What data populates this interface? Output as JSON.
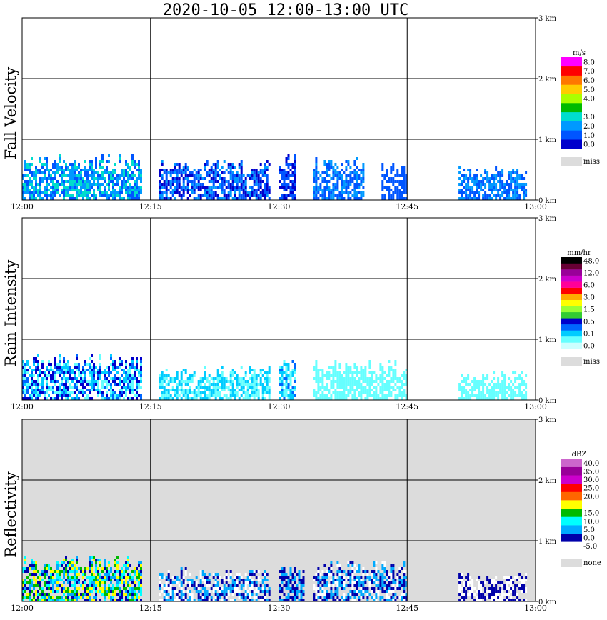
{
  "title": "2020-10-05   12:00-13:00 UTC",
  "colors": {
    "background": "#ffffff",
    "missing": "#dcdcdc",
    "grid": "#000000"
  },
  "chart_data": [
    {
      "type": "heatmap",
      "panel_label": "Fall Velocity",
      "xlabel": "",
      "ylabel": "Fall Velocity",
      "x_ticks": [
        "12:00",
        "12:15",
        "12:30",
        "12:45",
        "13:00"
      ],
      "y_ticks": [
        "0 km",
        "1 km",
        "2 km",
        "3 km"
      ],
      "xlim": [
        "12:00",
        "13:00"
      ],
      "ylim_km": [
        0,
        3.0
      ],
      "grid": true,
      "panel_background": "#ffffff",
      "colorbar": {
        "unit": "m/s",
        "levels": [
          "0.0",
          "1.0",
          "2.0",
          "3.0",
          "4.0",
          "5.0",
          "6.0",
          "7.0",
          "8.0"
        ],
        "colors": [
          "#0000cc",
          "#0055ff",
          "#0099ff",
          "#00ddcc",
          "#00bb00",
          "#aaff00",
          "#ffcc00",
          "#ff7700",
          "#ff0000",
          "#ff00ff"
        ],
        "missing_label": "miss"
      },
      "echo_segments": [
        {
          "start": "12:00",
          "end": "12:14",
          "top_km": 0.8,
          "dominant": [
            "#0055ff",
            "#0099ff",
            "#00ddcc"
          ]
        },
        {
          "start": "12:16",
          "end": "12:29",
          "top_km": 0.7,
          "dominant": [
            "#0055ff",
            "#0099ff",
            "#0000cc"
          ]
        },
        {
          "start": "12:30",
          "end": "12:32",
          "top_km": 0.8,
          "dominant": [
            "#0055ff",
            "#0000cc"
          ]
        },
        {
          "start": "12:34",
          "end": "12:40",
          "top_km": 0.75,
          "dominant": [
            "#0055ff",
            "#0099ff"
          ]
        },
        {
          "start": "12:42",
          "end": "12:45",
          "top_km": 0.65,
          "dominant": [
            "#0055ff"
          ]
        },
        {
          "start": "12:51",
          "end": "12:59",
          "top_km": 0.6,
          "dominant": [
            "#0055ff",
            "#0099ff"
          ]
        }
      ]
    },
    {
      "type": "heatmap",
      "panel_label": "Rain Intensity",
      "xlabel": "",
      "ylabel": "Rain Intensity",
      "x_ticks": [
        "12:00",
        "12:15",
        "12:30",
        "12:45",
        "13:00"
      ],
      "y_ticks": [
        "0 km",
        "1 km",
        "2 km",
        "3 km"
      ],
      "xlim": [
        "12:00",
        "13:00"
      ],
      "ylim_km": [
        0,
        3.0
      ],
      "grid": true,
      "panel_background": "#ffffff",
      "colorbar": {
        "unit": "mm/hr",
        "levels": [
          "0.0",
          "0.1",
          "0.5",
          "1.5",
          "3.0",
          "6.0",
          "12.0",
          "48.0"
        ],
        "colors": [
          "#ccffff",
          "#66ffff",
          "#00ccff",
          "#0066ff",
          "#0000cc",
          "#33cc33",
          "#99ff33",
          "#ffff00",
          "#ffaa00",
          "#ff0000",
          "#ff0099",
          "#cc00cc",
          "#990099",
          "#660033",
          "#000000"
        ],
        "missing_label": "miss"
      },
      "echo_segments": [
        {
          "start": "12:00",
          "end": "12:14",
          "top_km": 0.8,
          "dominant": [
            "#66ffff",
            "#00ccff",
            "#0066ff",
            "#0000cc"
          ]
        },
        {
          "start": "12:16",
          "end": "12:29",
          "top_km": 0.6,
          "dominant": [
            "#66ffff",
            "#00ccff"
          ]
        },
        {
          "start": "12:30",
          "end": "12:32",
          "top_km": 0.7,
          "dominant": [
            "#66ffff",
            "#00ccff",
            "#0066ff"
          ]
        },
        {
          "start": "12:34",
          "end": "12:45",
          "top_km": 0.7,
          "dominant": [
            "#66ffff"
          ]
        },
        {
          "start": "12:51",
          "end": "12:59",
          "top_km": 0.5,
          "dominant": [
            "#66ffff"
          ]
        }
      ]
    },
    {
      "type": "heatmap",
      "panel_label": "Reflectivity",
      "xlabel": "",
      "ylabel": "Reflectivity",
      "x_ticks": [
        "12:00",
        "12:15",
        "12:30",
        "12:45",
        "13:00"
      ],
      "y_ticks": [
        "0 km",
        "1 km",
        "2 km",
        "3 km"
      ],
      "xlim": [
        "12:00",
        "13:00"
      ],
      "ylim_km": [
        0,
        3.0
      ],
      "grid": true,
      "panel_background": "#dcdcdc",
      "colorbar": {
        "unit": "dBZ",
        "levels": [
          "-5.0",
          "0.0",
          "5.0",
          "10.0",
          "15.0",
          "20.0",
          "25.0",
          "30.0",
          "35.0",
          "40.0"
        ],
        "colors": [
          "#ffffff",
          "#0000aa",
          "#00aaff",
          "#00ffff",
          "#00bb00",
          "#ffff00",
          "#ff6600",
          "#ff0000",
          "#cc00cc",
          "#990099",
          "#cc66cc"
        ],
        "missing_label": "none"
      },
      "echo_segments": [
        {
          "start": "12:00",
          "end": "12:14",
          "top_km": 0.8,
          "dominant": [
            "#0000aa",
            "#00aaff",
            "#00ffff",
            "#00bb00",
            "#ffff00"
          ]
        },
        {
          "start": "12:16",
          "end": "12:29",
          "top_km": 0.6,
          "dominant": [
            "#ffffff",
            "#0000aa",
            "#00aaff"
          ]
        },
        {
          "start": "12:30",
          "end": "12:33",
          "top_km": 0.6,
          "dominant": [
            "#0000aa",
            "#00aaff"
          ]
        },
        {
          "start": "12:34",
          "end": "12:45",
          "top_km": 0.7,
          "dominant": [
            "#0000aa",
            "#00aaff",
            "#ffffff"
          ]
        },
        {
          "start": "12:51",
          "end": "12:59",
          "top_km": 0.5,
          "dominant": [
            "#0000aa",
            "#ffffff"
          ]
        }
      ]
    }
  ]
}
